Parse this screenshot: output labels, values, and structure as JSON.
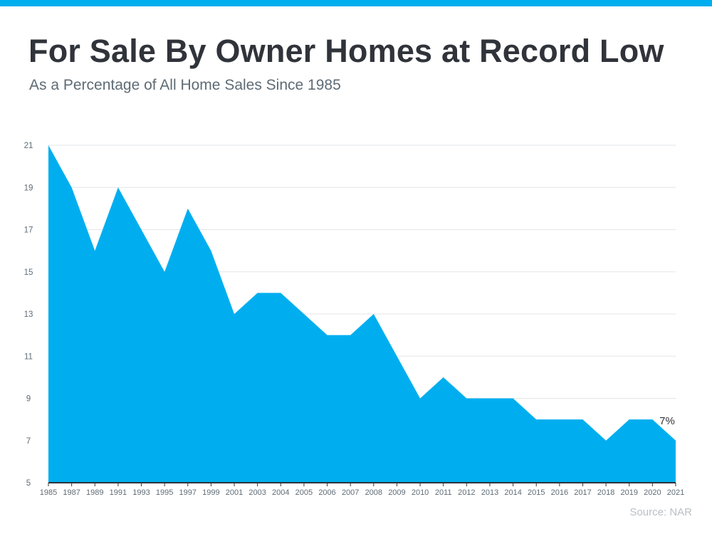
{
  "header": {
    "title": "For Sale By Owner Homes at Record Low",
    "subtitle": "As a Percentage of All Home Sales Since 1985"
  },
  "footer": {
    "source": "Source: NAR"
  },
  "colors": {
    "accent": "#00aeef",
    "area": "#00aeef"
  },
  "chart_data": {
    "type": "area",
    "title": "For Sale By Owner Homes at Record Low",
    "subtitle": "As a Percentage of All Home Sales Since 1985",
    "categories": [
      "1985",
      "1987",
      "1989",
      "1991",
      "1993",
      "1995",
      "1997",
      "1999",
      "2001",
      "2003",
      "2004",
      "2005",
      "2006",
      "2007",
      "2008",
      "2009",
      "2010",
      "2011",
      "2012",
      "2013",
      "2014",
      "2015",
      "2016",
      "2017",
      "2018",
      "2019",
      "2020",
      "2021"
    ],
    "values": [
      21,
      19,
      16,
      19,
      17,
      15,
      18,
      16,
      13,
      14,
      14,
      13,
      12,
      12,
      13,
      11,
      9,
      10,
      9,
      9,
      9,
      8,
      8,
      8,
      7,
      8,
      8,
      7
    ],
    "ylim": [
      5,
      21
    ],
    "yticks": [
      5,
      7,
      9,
      11,
      13,
      15,
      17,
      19,
      21
    ],
    "grid": true,
    "annotations": [
      {
        "category": "2021",
        "label": "7%"
      }
    ],
    "xlabel": "",
    "ylabel": ""
  }
}
